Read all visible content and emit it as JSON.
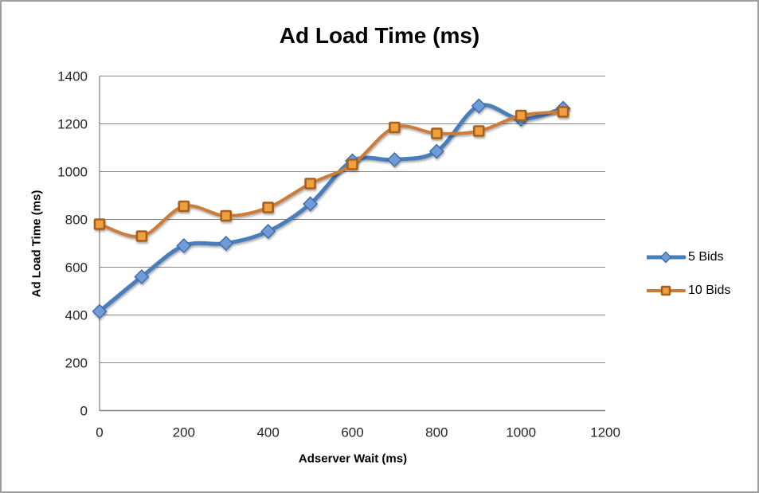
{
  "chart_data": {
    "type": "line",
    "title": "Ad Load Time (ms)",
    "xlabel": "Adserver Wait (ms)",
    "ylabel": "Ad Load Time (ms)",
    "x": [
      0,
      100,
      200,
      300,
      400,
      500,
      600,
      700,
      800,
      900,
      1000,
      1100
    ],
    "series": [
      {
        "name": "5 Bids",
        "values": [
          415,
          560,
          690,
          700,
          750,
          865,
          1045,
          1050,
          1085,
          1275,
          1220,
          1265
        ],
        "marker": "diamond",
        "line_color": "#4a7ebb",
        "line_width": 5,
        "marker_fill": "#6f9bd8",
        "marker_stroke": "#3c6ca8"
      },
      {
        "name": "10 Bids",
        "values": [
          780,
          730,
          855,
          815,
          850,
          950,
          1030,
          1185,
          1160,
          1170,
          1235,
          1250
        ],
        "marker": "square",
        "line_color": "#cc7b38",
        "line_width": 4,
        "marker_fill": "#efa03f",
        "marker_stroke": "#a95e1a"
      }
    ],
    "xlim": [
      0,
      1200
    ],
    "ylim": [
      0,
      1400
    ],
    "x_ticks": [
      0,
      200,
      400,
      600,
      800,
      1000,
      1200
    ],
    "y_ticks": [
      0,
      200,
      400,
      600,
      800,
      1000,
      1200,
      1400
    ],
    "grid": "horizontal",
    "smooth": true,
    "legend_position": "right",
    "colors": {
      "gridline": "#848484",
      "axis_line": "#808080",
      "canvas_border": "#9e9e9e",
      "tick_text": "#262626",
      "title_text": "#000000"
    }
  }
}
